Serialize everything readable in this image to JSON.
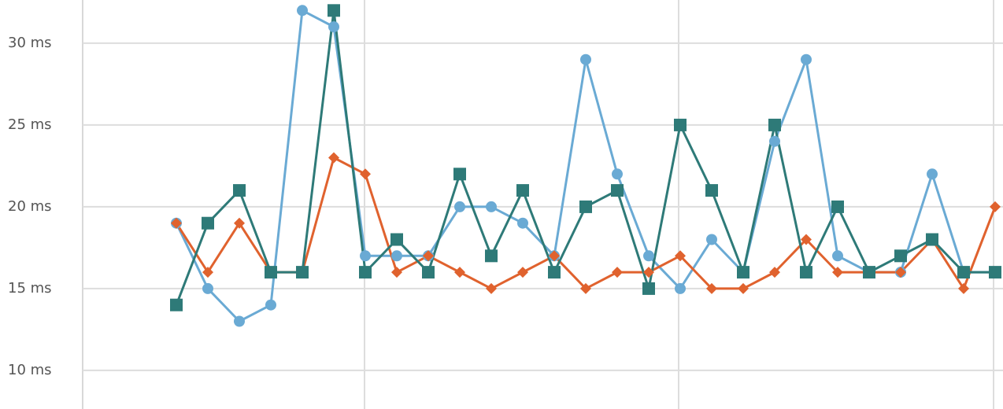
{
  "chart_data": {
    "type": "line",
    "categories": [
      null,
      null,
      null,
      null,
      null,
      null,
      null,
      null,
      null,
      null,
      null,
      null,
      null,
      null,
      null,
      null,
      null,
      null,
      null,
      null,
      null,
      null,
      null,
      null,
      null,
      null,
      null
    ],
    "series": [
      {
        "color": "#6aaad4",
        "marker": "circle",
        "values": [
          19,
          15,
          13,
          14,
          32,
          31,
          17,
          17,
          17,
          20,
          20,
          19,
          17,
          29,
          22,
          17,
          15,
          18,
          16,
          24,
          29,
          17,
          16,
          16,
          22,
          16,
          16
        ]
      },
      {
        "color": "#e0622e",
        "marker": "diamond",
        "values": [
          19,
          16,
          19,
          16,
          16,
          23,
          22,
          16,
          17,
          16,
          15,
          16,
          17,
          15,
          16,
          16,
          17,
          15,
          15,
          16,
          18,
          16,
          16,
          16,
          18,
          15,
          20
        ]
      },
      {
        "color": "#2e7a78",
        "marker": "square",
        "values": [
          14,
          19,
          21,
          16,
          16,
          32,
          16,
          18,
          16,
          22,
          17,
          21,
          16,
          20,
          21,
          15,
          25,
          21,
          16,
          25,
          16,
          20,
          16,
          17,
          18,
          16,
          16
        ]
      }
    ],
    "ylim": [
      7.64,
      32.64
    ],
    "yticks": [
      {
        "value": 10,
        "label": "10 ms"
      },
      {
        "value": 15,
        "label": "15 ms"
      },
      {
        "value": 20,
        "label": "20 ms"
      },
      {
        "value": 25,
        "label": "25 ms"
      },
      {
        "value": 30,
        "label": "30 ms"
      }
    ],
    "grid": true
  }
}
